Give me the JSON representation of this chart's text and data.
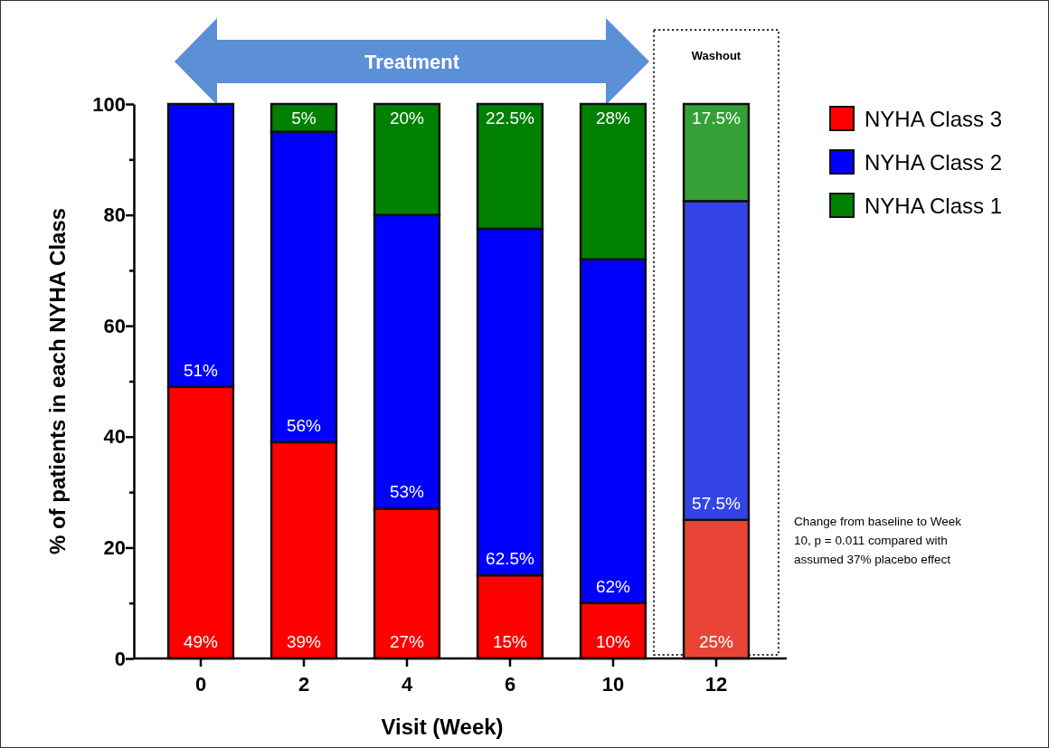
{
  "chart_data": {
    "type": "bar",
    "stacked": true,
    "xlabel": "Visit (Week)",
    "ylabel": "% of patients in each NYHA Class",
    "categories": [
      "0",
      "2",
      "4",
      "6",
      "10",
      "12"
    ],
    "series": [
      {
        "name": "NYHA Class 3",
        "color": "#ff0000",
        "colors": [
          "#ff0000",
          "#ff0000",
          "#ff0000",
          "#ff0000",
          "#ff0000",
          "#e94436"
        ],
        "values": [
          49,
          39,
          27,
          15,
          10,
          25
        ],
        "value_labels": [
          "49%",
          "39%",
          "27%",
          "15%",
          "10%",
          "25%"
        ]
      },
      {
        "name": "NYHA Class 2",
        "color": "#0000ff",
        "colors": [
          "#0000ff",
          "#0000ff",
          "#0000ff",
          "#0000ff",
          "#0000ff",
          "#3344e6"
        ],
        "values": [
          51,
          56,
          53,
          62.5,
          62,
          57.5
        ],
        "value_labels": [
          "51%",
          "56%",
          "53%",
          "62.5%",
          "62%",
          "57.5%"
        ]
      },
      {
        "name": "NYHA Class 1",
        "color": "#008000",
        "colors": [
          null,
          "#008000",
          "#008000",
          "#008000",
          "#008000",
          "#35a035"
        ],
        "values": [
          null,
          5,
          20,
          22.5,
          28,
          17.5
        ],
        "value_labels": [
          null,
          "5%",
          "20%",
          "22.5%",
          "28%",
          "17.5%"
        ]
      }
    ],
    "ylim": [
      0,
      100
    ],
    "yticks": [
      0,
      {
        "value": 10,
        "label": null
      },
      20,
      {
        "value": 30,
        "label": null
      },
      40,
      {
        "value": 50,
        "label": null
      },
      60,
      {
        "value": 70,
        "label": null
      },
      80,
      {
        "value": 90,
        "label": null
      },
      100
    ],
    "annotations": [
      "Treatment",
      "Washout",
      "Change from baseline to Week 10, p = 0.011 compared with assumed 37% placebo effect"
    ],
    "legend": "right",
    "grid": false
  }
}
